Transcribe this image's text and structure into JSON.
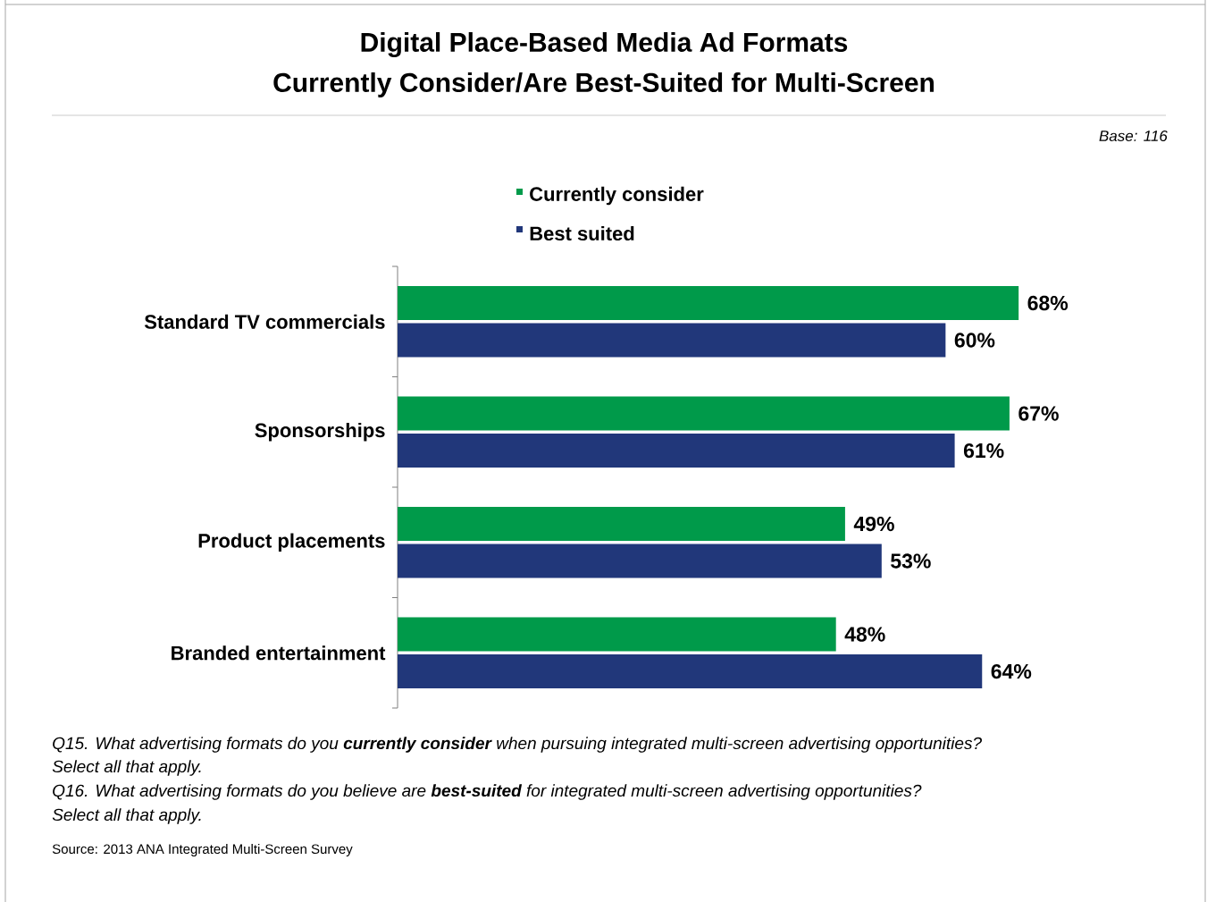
{
  "chart_data": {
    "type": "bar",
    "orientation": "horizontal",
    "title": "Digital Place-Based Media Ad Formats",
    "subtitle": "Currently Consider/Are Best-Suited for Multi-Screen",
    "categories": [
      "Standard TV commercials",
      "Sponsorships",
      "Product placements",
      "Branded entertainment"
    ],
    "series": [
      {
        "name": "Currently consider",
        "color": "#009a4a",
        "values": [
          68,
          67,
          49,
          48
        ],
        "value_labels": [
          "68%",
          "67%",
          "49%",
          "48%"
        ]
      },
      {
        "name": "Best suited",
        "color": "#21377a",
        "values": [
          60,
          61,
          53,
          64
        ],
        "value_labels": [
          "60%",
          "61%",
          "53%",
          "64%"
        ]
      }
    ],
    "legend": "top",
    "annotations": [
      "Base: 116",
      "Q15. What advertising formats do you **currently consider** when pursuing integrated multi-screen advertising opportunities?",
      "Select all that apply.",
      "Q16. What advertising formats do you believe are **best-suited** for integrated multi-screen advertising opportunities?",
      "Select all that apply.",
      "Source: 2013 ANA Integrated Multi-Screen Survey"
    ]
  }
}
